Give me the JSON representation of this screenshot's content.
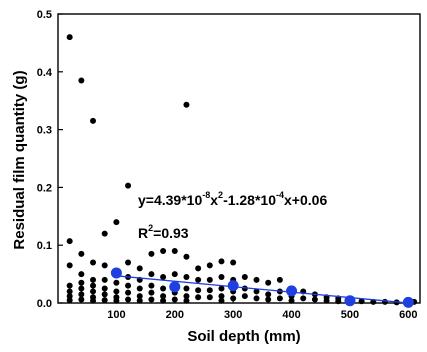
{
  "chart_data": {
    "type": "scatter",
    "xlabel": "Soil depth (mm)",
    "ylabel": "Residual film quantity (g)",
    "xlim": [
      0,
      620
    ],
    "ylim": [
      0,
      0.5
    ],
    "x_ticks": [
      100,
      200,
      300,
      400,
      500,
      600
    ],
    "y_ticks": [
      0.0,
      0.1,
      0.2,
      0.3,
      0.4,
      0.5
    ],
    "x_tick_labels": [
      "100",
      "200",
      "300",
      "400",
      "500",
      "600"
    ],
    "y_tick_labels": [
      "0.0",
      "0.1",
      "0.2",
      "0.3",
      "0.4",
      "0.5"
    ],
    "equation": {
      "prefix": "y=4.39*10",
      "exp1": "-8",
      "mid1": "x",
      "exp2": "2",
      "mid2": "-1.28*10",
      "exp3": "-4",
      "suffix": "x+0.06"
    },
    "r_squared": {
      "prefix": "R",
      "exp": "2",
      "suffix": "=0.93"
    },
    "colors": {
      "observed": "#000000",
      "mean": "#1f3fe0",
      "fit": "#1f3fe0"
    },
    "series": [
      {
        "role": "observed",
        "points": [
          [
            20,
            0.46
          ],
          [
            40,
            0.385
          ],
          [
            60,
            0.315
          ],
          [
            220,
            0.343
          ],
          [
            120,
            0.203
          ],
          [
            100,
            0.14
          ],
          [
            80,
            0.12
          ],
          [
            20,
            0.107
          ],
          [
            40,
            0.085
          ],
          [
            60,
            0.07
          ],
          [
            80,
            0.065
          ],
          [
            20,
            0.065
          ],
          [
            60,
            0.04
          ],
          [
            40,
            0.05
          ],
          [
            100,
            0.055
          ],
          [
            120,
            0.07
          ],
          [
            140,
            0.06
          ],
          [
            160,
            0.085
          ],
          [
            180,
            0.09
          ],
          [
            200,
            0.09
          ],
          [
            220,
            0.08
          ],
          [
            240,
            0.06
          ],
          [
            260,
            0.065
          ],
          [
            280,
            0.072
          ],
          [
            300,
            0.07
          ],
          [
            320,
            0.045
          ],
          [
            340,
            0.04
          ],
          [
            360,
            0.035
          ],
          [
            380,
            0.04
          ],
          [
            400,
            0.025
          ],
          [
            420,
            0.02
          ],
          [
            440,
            0.015
          ],
          [
            460,
            0.01
          ],
          [
            480,
            0.008
          ],
          [
            500,
            0.005
          ],
          [
            20,
            0.03
          ],
          [
            20,
            0.02
          ],
          [
            20,
            0.012
          ],
          [
            20,
            0.005
          ],
          [
            40,
            0.035
          ],
          [
            40,
            0.025
          ],
          [
            40,
            0.015
          ],
          [
            40,
            0.006
          ],
          [
            60,
            0.03
          ],
          [
            60,
            0.02
          ],
          [
            60,
            0.01
          ],
          [
            60,
            0.004
          ],
          [
            80,
            0.04
          ],
          [
            80,
            0.025
          ],
          [
            80,
            0.015
          ],
          [
            80,
            0.005
          ],
          [
            100,
            0.035
          ],
          [
            100,
            0.02
          ],
          [
            100,
            0.01
          ],
          [
            100,
            0.004
          ],
          [
            120,
            0.045
          ],
          [
            120,
            0.03
          ],
          [
            120,
            0.018
          ],
          [
            120,
            0.006
          ],
          [
            140,
            0.04
          ],
          [
            140,
            0.025
          ],
          [
            140,
            0.012
          ],
          [
            140,
            0.004
          ],
          [
            160,
            0.05
          ],
          [
            160,
            0.03
          ],
          [
            160,
            0.018
          ],
          [
            160,
            0.006
          ],
          [
            180,
            0.045
          ],
          [
            180,
            0.025
          ],
          [
            180,
            0.012
          ],
          [
            180,
            0.004
          ],
          [
            200,
            0.05
          ],
          [
            200,
            0.032
          ],
          [
            200,
            0.018
          ],
          [
            200,
            0.006
          ],
          [
            220,
            0.045
          ],
          [
            220,
            0.025
          ],
          [
            220,
            0.012
          ],
          [
            220,
            0.004
          ],
          [
            240,
            0.04
          ],
          [
            240,
            0.022
          ],
          [
            240,
            0.01
          ],
          [
            260,
            0.04
          ],
          [
            260,
            0.022
          ],
          [
            260,
            0.01
          ],
          [
            280,
            0.045
          ],
          [
            280,
            0.025
          ],
          [
            280,
            0.012
          ],
          [
            280,
            0.004
          ],
          [
            300,
            0.04
          ],
          [
            300,
            0.02
          ],
          [
            300,
            0.008
          ],
          [
            320,
            0.025
          ],
          [
            320,
            0.012
          ],
          [
            340,
            0.02
          ],
          [
            340,
            0.008
          ],
          [
            360,
            0.015
          ],
          [
            360,
            0.006
          ],
          [
            380,
            0.02
          ],
          [
            380,
            0.008
          ],
          [
            400,
            0.012
          ],
          [
            400,
            0.004
          ],
          [
            420,
            0.008
          ],
          [
            440,
            0.006
          ],
          [
            460,
            0.004
          ],
          [
            480,
            0.003
          ],
          [
            500,
            0.002
          ],
          [
            520,
            0.003
          ],
          [
            540,
            0.002
          ],
          [
            560,
            0.002
          ],
          [
            580,
            0.001
          ],
          [
            600,
            0.001
          ],
          [
            610,
            0.002
          ]
        ]
      },
      {
        "role": "mean",
        "points": [
          [
            100,
            0.052
          ],
          [
            200,
            0.028
          ],
          [
            300,
            0.03
          ],
          [
            400,
            0.021
          ],
          [
            500,
            0.004
          ],
          [
            600,
            0.001
          ]
        ]
      },
      {
        "role": "fit",
        "points": [
          [
            100,
            0.047
          ],
          [
            600,
            0.0
          ]
        ]
      }
    ]
  }
}
